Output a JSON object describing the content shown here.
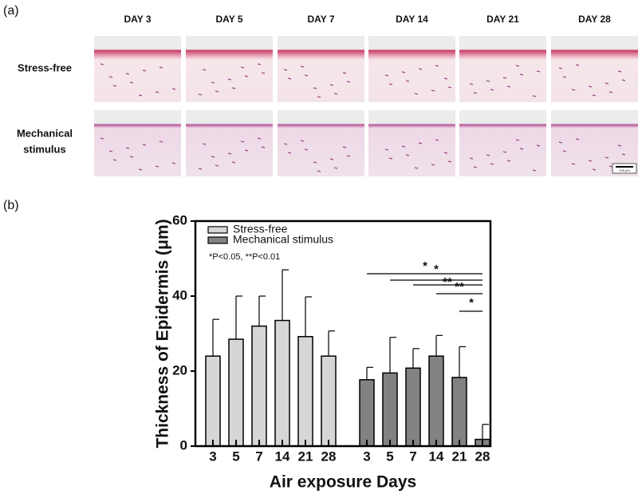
{
  "panel_a": {
    "label": "(a)",
    "columns": [
      "DAY 3",
      "DAY 5",
      "DAY 7",
      "DAY 14",
      "DAY 21",
      "DAY 28"
    ],
    "rows": [
      [
        "Stress-free"
      ],
      [
        "Mechanical",
        "stimulus"
      ]
    ],
    "scale_bar": "100 μm"
  },
  "panel_b": {
    "label": "(b)"
  },
  "chart_data": {
    "type": "bar",
    "ylabel": "Thickness of Epidermis (μm)",
    "xlabel": "Air exposure Days",
    "categories": [
      "3",
      "5",
      "7",
      "14",
      "21",
      "28"
    ],
    "series": [
      {
        "name": "Stress-free",
        "color": "#d6d6d6",
        "values": [
          24,
          28.5,
          32,
          33.5,
          29.2,
          24
        ],
        "errors": [
          9.8,
          11.5,
          8,
          13.5,
          10.6,
          6.7
        ]
      },
      {
        "name": "Mechanical stimulus",
        "color": "#828282",
        "values": [
          17.7,
          19.5,
          20.8,
          24,
          18.3,
          1.8
        ],
        "errors": [
          3.3,
          9.5,
          5.2,
          5.5,
          8.2,
          4
        ]
      }
    ],
    "ylim": [
      0,
      60
    ],
    "yticks": [
      0,
      20,
      40,
      60
    ],
    "annotation": "*P<0.05,  **P<0.01",
    "significance": [
      "*",
      "*",
      "**",
      "**",
      "*"
    ],
    "legend": "upper left"
  }
}
